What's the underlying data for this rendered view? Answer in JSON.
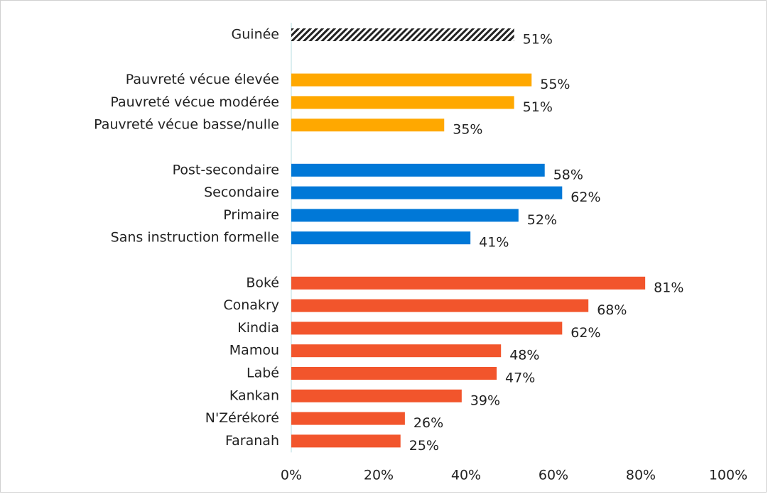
{
  "chart_data": {
    "type": "hbar",
    "categories": [
      "Guinée",
      null,
      "Pauvreté vécue élevée",
      "Pauvreté vécue modérée",
      "Pauvreté vécue basse/nulle",
      null,
      "Post-secondaire",
      "Secondaire",
      "Primaire",
      "Sans instruction formelle",
      null,
      "Boké",
      "Conakry",
      "Kindia",
      "Mamou",
      "Labé",
      "Kankan",
      "N'Zérékoré",
      "Faranah"
    ],
    "values": [
      51,
      null,
      55,
      51,
      35,
      null,
      58,
      62,
      52,
      41,
      null,
      81,
      68,
      62,
      48,
      47,
      39,
      26,
      25
    ],
    "value_labels": [
      "51%",
      null,
      "55%",
      "51%",
      "35%",
      null,
      "58%",
      "62%",
      "52%",
      "41%",
      null,
      "81%",
      "68%",
      "62%",
      "48%",
      "47%",
      "39%",
      "26%",
      "25%"
    ],
    "colors": [
      "#222222",
      null,
      "#FFA800",
      "#FFA800",
      "#FFA800",
      null,
      "#0078D7",
      "#0078D7",
      "#0078D7",
      "#0078D7",
      null,
      "#F2552C",
      "#F2552C",
      "#F2552C",
      "#F2552C",
      "#F2552C",
      "#F2552C",
      "#F2552C",
      "#F2552C"
    ],
    "patterns": [
      "hatch",
      null,
      null,
      null,
      null,
      null,
      null,
      null,
      null,
      null,
      null,
      null,
      null,
      null,
      null,
      null,
      null,
      null,
      null
    ],
    "xlim": [
      0,
      100
    ],
    "xticks": [
      {
        "value": 0,
        "label": "0%"
      },
      {
        "value": 20,
        "label": "20%"
      },
      {
        "value": 40,
        "label": "40%"
      },
      {
        "value": 60,
        "label": "60%"
      },
      {
        "value": 80,
        "label": "80%"
      },
      {
        "value": 100,
        "label": "100%"
      }
    ],
    "grid": false
  }
}
